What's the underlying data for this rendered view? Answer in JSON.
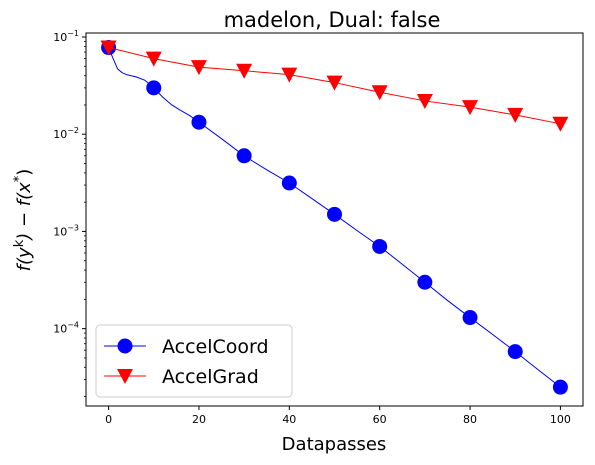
{
  "chart_data": {
    "type": "line",
    "title": "madelon, Dual: false",
    "xlabel": "Datapasses",
    "ylabel": "f(y^k) − f(x^*)",
    "yscale": "log",
    "xlim": [
      -5,
      105
    ],
    "ylim": [
      1.6e-05,
      0.11
    ],
    "xticks": [
      0,
      20,
      40,
      60,
      80,
      100
    ],
    "yticks": [
      {
        "value": 0.1,
        "base": "10",
        "exp": "−1"
      },
      {
        "value": 0.01,
        "base": "10",
        "exp": "−2"
      },
      {
        "value": 0.001,
        "base": "10",
        "exp": "−3"
      },
      {
        "value": 0.0001,
        "base": "10",
        "exp": "−4"
      }
    ],
    "legend_position": "lower-left",
    "grid": false,
    "series": [
      {
        "name": "AccelCoord",
        "color": "#0000ff",
        "marker": "circle",
        "x": [
          0,
          10,
          20,
          30,
          40,
          50,
          60,
          70,
          80,
          90,
          100
        ],
        "values": [
          0.078,
          0.03,
          0.0133,
          0.006,
          0.00315,
          0.0015,
          0.0007,
          0.0003,
          0.00013,
          5.8e-05,
          2.5e-05
        ],
        "line_x": [
          0,
          1,
          2,
          3,
          4,
          5,
          6,
          8,
          10,
          12,
          14,
          16,
          18,
          20,
          25,
          30,
          35,
          40,
          45,
          50,
          55,
          60,
          65,
          70,
          75,
          80,
          85,
          90,
          95,
          100
        ],
        "line_y": [
          0.078,
          0.06,
          0.047,
          0.043,
          0.041,
          0.04,
          0.039,
          0.036,
          0.03,
          0.024,
          0.02,
          0.0175,
          0.0155,
          0.0133,
          0.009,
          0.006,
          0.0043,
          0.00315,
          0.00218,
          0.0015,
          0.00102,
          0.0007,
          0.00046,
          0.0003,
          0.000195,
          0.00013,
          8.7e-05,
          5.8e-05,
          3.8e-05,
          2.5e-05
        ]
      },
      {
        "name": "AccelGrad",
        "color": "#ff0000",
        "marker": "triangle-down",
        "x": [
          0,
          10,
          20,
          30,
          40,
          50,
          60,
          70,
          80,
          90,
          100
        ],
        "values": [
          0.078,
          0.06,
          0.049,
          0.045,
          0.041,
          0.034,
          0.027,
          0.022,
          0.019,
          0.0158,
          0.0128
        ],
        "line_x": [
          0,
          10,
          20,
          30,
          40,
          50,
          60,
          70,
          80,
          90,
          100
        ],
        "line_y": [
          0.078,
          0.06,
          0.049,
          0.045,
          0.041,
          0.034,
          0.027,
          0.022,
          0.019,
          0.0158,
          0.0128
        ]
      }
    ]
  }
}
